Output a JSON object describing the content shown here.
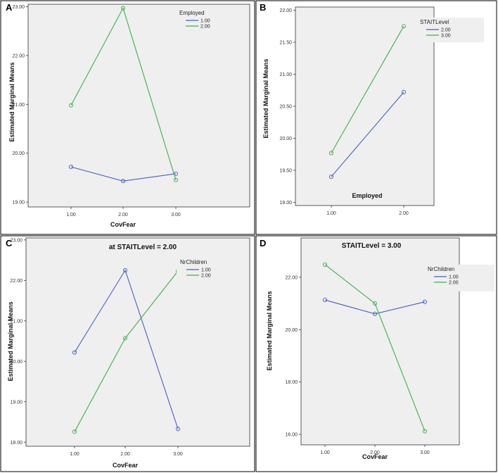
{
  "panels": [
    {
      "letter": "A",
      "chart_data": {
        "type": "line",
        "title": "",
        "xlabel": "CovFear",
        "ylabel": "Estimated Marginal Means",
        "categories": [
          "1.00",
          "2.00",
          "3.00"
        ],
        "ylim": [
          18.9,
          23.05
        ],
        "yticks": [
          19.0,
          20.0,
          21.0,
          22.0,
          23.0
        ],
        "ytick_labels": [
          "19.00",
          "20.00",
          "21.00",
          "22.00",
          "23.00"
        ],
        "legend": {
          "title": "Employed",
          "position": "top-right"
        },
        "series": [
          {
            "name": "1.00",
            "color": "#4a5ec2",
            "values": [
              19.72,
              19.43,
              19.58
            ]
          },
          {
            "name": "2.00",
            "color": "#3cb04a",
            "values": [
              20.98,
              22.97,
              19.45
            ]
          }
        ]
      }
    },
    {
      "letter": "B",
      "chart_data": {
        "type": "line",
        "title": "",
        "xlabel": "Employed",
        "ylabel": "Estimated Marginal Means",
        "categories": [
          "1.00",
          "2.00"
        ],
        "ylim": [
          18.95,
          22.05
        ],
        "yticks": [
          19.0,
          19.5,
          20.0,
          20.5,
          21.0,
          21.5,
          22.0
        ],
        "ytick_labels": [
          "19.00",
          "19.50",
          "20.00",
          "20.50",
          "21.00",
          "21.50",
          "22.00"
        ],
        "legend": {
          "title": "STAITLevel",
          "position": "top-right"
        },
        "series": [
          {
            "name": "2.00",
            "color": "#4a5ec2",
            "values": [
              19.4,
              20.72
            ]
          },
          {
            "name": "3.00",
            "color": "#3cb04a",
            "values": [
              19.77,
              21.75
            ]
          }
        ]
      }
    },
    {
      "letter": "C",
      "chart_data": {
        "type": "line",
        "title": "at STAITLevel = 2.00",
        "xlabel": "CovFear",
        "ylabel": "Estimated Marginal Means",
        "categories": [
          "1.00",
          "2.00",
          "3.00"
        ],
        "ylim": [
          17.9,
          23.05
        ],
        "yticks": [
          18.0,
          19.0,
          20.0,
          21.0,
          22.0,
          23.0
        ],
        "ytick_labels": [
          "18.00",
          "19.00",
          "20.00",
          "21.00",
          "22.00",
          "23.00"
        ],
        "legend": {
          "title": "NrChildren",
          "position": "top-right"
        },
        "series": [
          {
            "name": "1.00",
            "color": "#4a5ec2",
            "values": [
              20.22,
              22.25,
              18.33
            ]
          },
          {
            "name": "2.00",
            "color": "#3cb04a",
            "values": [
              18.26,
              20.57,
              22.23
            ]
          }
        ]
      }
    },
    {
      "letter": "D",
      "chart_data": {
        "type": "line",
        "title": "STAITLevel = 3.00",
        "xlabel": "CovFear",
        "ylabel": "Estimated Marginal Means",
        "categories": [
          "1.00",
          "2.00",
          "3.00"
        ],
        "ylim": [
          15.6,
          23.5
        ],
        "yticks": [
          16.0,
          18.0,
          20.0,
          22.0
        ],
        "ytick_labels": [
          "16.00",
          "18.00",
          "20.00",
          "22.00"
        ],
        "legend": {
          "title": "NrChildren",
          "position": "top-right"
        },
        "series": [
          {
            "name": "1.00",
            "color": "#4a5ec2",
            "values": [
              21.13,
              20.6,
              21.06
            ]
          },
          {
            "name": "2.00",
            "color": "#3cb04a",
            "values": [
              22.48,
              21.0,
              16.12
            ]
          }
        ]
      }
    }
  ]
}
